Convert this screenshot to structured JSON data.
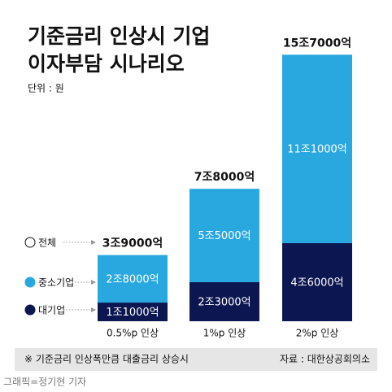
{
  "chart_data": {
    "type": "stacked_bar",
    "title": "기준금리 인상시 기업",
    "subtitle": "이자부담 시나리오",
    "unit": "단위 : 원",
    "categories": [
      "0.5%p 인상",
      "1%p 인상",
      "2%p 인상"
    ],
    "series": [
      {
        "name": "대기업",
        "color": "#0c1650",
        "values": [
          11000,
          23000,
          46000
        ],
        "value_labels": [
          "1조1000억",
          "2조3000억",
          "4조6000억"
        ]
      },
      {
        "name": "중소기업",
        "color": "#29a8e0",
        "values": [
          28000,
          55000,
          111000
        ],
        "value_labels": [
          "2조8000억",
          "5조5000억",
          "11조1000억"
        ]
      }
    ],
    "totals": {
      "name": "전체",
      "values": [
        39000,
        78000,
        157000
      ],
      "value_labels": [
        "3조9000억",
        "7조8000억",
        "15조7000억"
      ]
    },
    "ylim": [
      0,
      160000
    ],
    "note": "※ 기준금리 인상폭만큼 대출금리 상승시",
    "source": "자료 : 대한상공회의소",
    "credit": "그래픽=정기현 기자"
  }
}
